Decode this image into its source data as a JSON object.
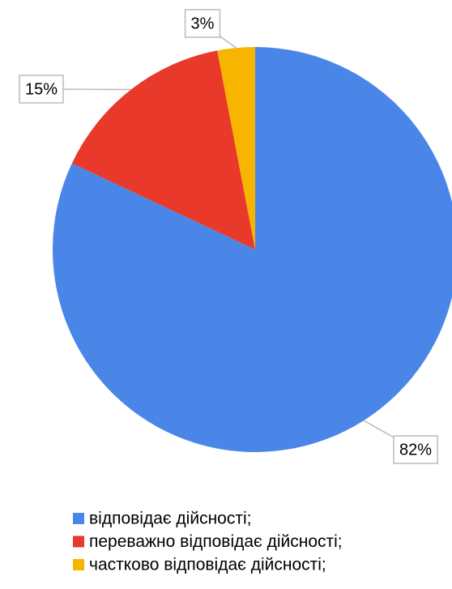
{
  "chart_data": {
    "type": "pie",
    "categories": [
      "відповідає дійсності;",
      "переважно відповідає дійсності;",
      "частково відповідає дійсності;"
    ],
    "values": [
      82,
      15,
      3
    ],
    "value_labels": [
      "82%",
      "15%",
      "3%"
    ],
    "colors": [
      "#4a86e8",
      "#e8392b",
      "#f7b500"
    ],
    "legend": "bottom"
  }
}
